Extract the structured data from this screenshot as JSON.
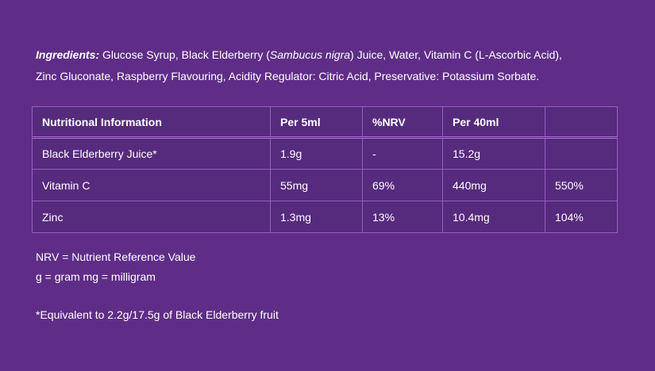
{
  "colors": {
    "background": "#5f2d87",
    "table_cell_fill": "#562a7d",
    "table_border": "#9c59c6",
    "header_underline": "#ad6bd6",
    "text": "#ffffff"
  },
  "ingredients": {
    "segments": [
      {
        "text": "Ingredients: ",
        "style": "bold-italic"
      },
      {
        "text": "Glucose Syrup, Black Elderberry (",
        "style": "regular"
      },
      {
        "text": "Sambucus nigra",
        "style": "italic"
      },
      {
        "text": ") Juice, Water, Vitamin C (L-Ascorbic Acid),",
        "style": "regular"
      },
      {
        "text": "",
        "style": "break"
      },
      {
        "text": "Zinc Gluconate, Raspberry Flavouring, Acidity Regulator: Citric Acid, Preservative: Potassium Sorbate.",
        "style": "regular"
      }
    ]
  },
  "nutrition_table": {
    "headers": [
      "Nutritional Information",
      "Per 5ml",
      "%NRV",
      "Per 40ml",
      ""
    ],
    "rows": [
      [
        "Black Elderberry Juice*",
        "1.9g",
        "-",
        "15.2g",
        ""
      ],
      [
        "Vitamin C",
        "55mg",
        "69%",
        "440mg",
        "550%"
      ],
      [
        "Zinc",
        "1.3mg",
        "13%",
        "10.4mg",
        "104%"
      ]
    ]
  },
  "footnotes": {
    "nrv": "NRV = Nutrient Reference Value",
    "units": "g = gram mg = milligram",
    "equivalence": "*Equivalent to 2.2g/17.5g of Black Elderberry fruit"
  }
}
